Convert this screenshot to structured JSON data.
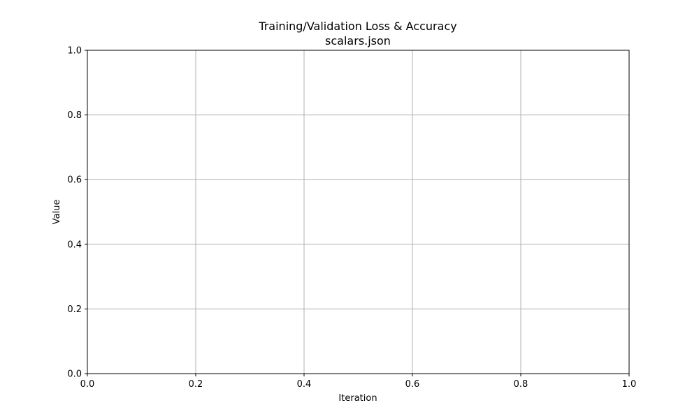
{
  "chart_data": {
    "type": "line",
    "title": "Training/Validation Loss & Accuracy",
    "subtitle": "scalars.json",
    "xlabel": "Iteration",
    "ylabel": "Value",
    "xlim": [
      0.0,
      1.0
    ],
    "ylim": [
      0.0,
      1.0
    ],
    "xticks": [
      "0.0",
      "0.2",
      "0.4",
      "0.6",
      "0.8",
      "1.0"
    ],
    "yticks": [
      "0.0",
      "0.2",
      "0.4",
      "0.6",
      "0.8",
      "1.0"
    ],
    "grid": true,
    "series": []
  }
}
